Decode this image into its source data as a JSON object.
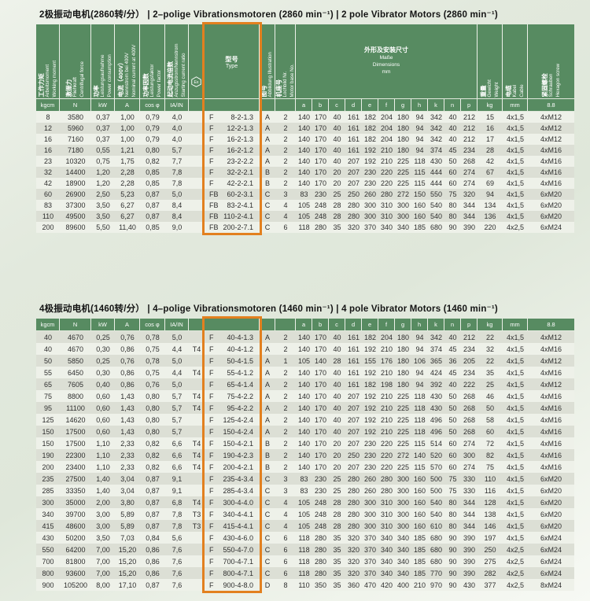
{
  "colors": {
    "header_green": "#578b61",
    "highlight_orange": "#e2801f",
    "row_shade": "#dcdfd5"
  },
  "header": {
    "cols": [
      {
        "cn": "工作力矩",
        "lat": "Arbeitsmoment\nWorking moment",
        "unit": "kgcm"
      },
      {
        "cn": "激振力",
        "lat": "Fliehkraft\nCentrifugal force",
        "unit": "N"
      },
      {
        "cn": "功率",
        "lat": "Leistungsaufnahme\nPower consumption",
        "unit": "kW"
      },
      {
        "cn": "电流（400V）",
        "lat": "Nennstrom bei 400V\nNominal current at 400V",
        "unit": "A"
      },
      {
        "cn": "功率因数",
        "lat": "Leistungsfaktor\nPower factor",
        "unit": "cos φ"
      },
      {
        "cn": "起动电流倍数",
        "lat": "Anzugsstrom/Nennstrom\nStarting current ratio",
        "unit": "IA/IN"
      }
    ],
    "ex_symbol": "Ex",
    "type_col": {
      "cn": "型号",
      "en": "Type"
    },
    "illustration": {
      "cn": "图号",
      "lat": "Abbildung  Illustration"
    },
    "motor_base": {
      "cn": "机座号",
      "lat": "Lochbild Nr.\nMotor base No."
    },
    "dims": {
      "cn": "外形及安装尺寸",
      "lat": "Maße\nDimensions\nmm",
      "letters": [
        "a",
        "b",
        "c",
        "d",
        "e",
        "f",
        "g",
        "h",
        "k",
        "n",
        "p"
      ]
    },
    "weight": {
      "cn": "重量",
      "lat": "Gewicht\nWeight",
      "unit": "kg"
    },
    "cable": {
      "cn": "电缆",
      "lat": "Kabel\nCable",
      "unit": "mm"
    },
    "screw": {
      "cn": "紧固螺栓",
      "lat": "Schrauben\nHexagon screw",
      "unit": "8.8"
    },
    "units_row": [
      "kgcm",
      "N",
      "kW",
      "A",
      "cos φ",
      "IA/IN",
      "",
      "",
      "",
      "",
      "a",
      "b",
      "c",
      "d",
      "e",
      "f",
      "g",
      "h",
      "k",
      "n",
      "p",
      "kg",
      "mm",
      "8.8"
    ]
  },
  "tables": [
    {
      "title": "2极振动电机(2860转/分） | 2–polige Vibrationsmotoren (2860 min⁻¹)  |  2 pole Vibrator Motors (2860 min⁻¹)",
      "rows": [
        [
          "8",
          "3580",
          "0,37",
          "1,00",
          "0,79",
          "4,0",
          "",
          [
            "F",
            "8-2-1.3"
          ],
          "A",
          "2",
          "140",
          "170",
          "40",
          "161",
          "182",
          "204",
          "180",
          "94",
          "342",
          "40",
          "212",
          "15",
          "4x1,5",
          "4xM12"
        ],
        [
          "12",
          "5960",
          "0,37",
          "1,00",
          "0,79",
          "4,0",
          "",
          [
            "F",
            "12-2-1.3"
          ],
          "A",
          "2",
          "140",
          "170",
          "40",
          "161",
          "182",
          "204",
          "180",
          "94",
          "342",
          "40",
          "212",
          "16",
          "4x1,5",
          "4xM12"
        ],
        [
          "16",
          "7160",
          "0,37",
          "1,00",
          "0,79",
          "4,0",
          "",
          [
            "F",
            "16-2-1.3"
          ],
          "A",
          "2",
          "140",
          "170",
          "40",
          "161",
          "182",
          "204",
          "180",
          "94",
          "342",
          "40",
          "212",
          "17",
          "4x1,5",
          "4xM12"
        ],
        [
          "16",
          "7180",
          "0,55",
          "1,21",
          "0,80",
          "5,7",
          "",
          [
            "F",
            "16-2-1.2"
          ],
          "A",
          "2",
          "140",
          "170",
          "40",
          "161",
          "192",
          "210",
          "180",
          "94",
          "374",
          "45",
          "234",
          "28",
          "4x1,5",
          "4xM16"
        ],
        [
          "23",
          "10320",
          "0,75",
          "1,75",
          "0,82",
          "7,7",
          "",
          [
            "F",
            "23-2-2.2"
          ],
          "A",
          "2",
          "140",
          "170",
          "40",
          "207",
          "192",
          "210",
          "225",
          "118",
          "430",
          "50",
          "268",
          "42",
          "4x1,5",
          "4xM16"
        ],
        [
          "32",
          "14400",
          "1,20",
          "2,28",
          "0,85",
          "7,8",
          "",
          [
            "F",
            "32-2-2.1"
          ],
          "B",
          "2",
          "140",
          "170",
          "20",
          "207",
          "230",
          "220",
          "225",
          "115",
          "444",
          "60",
          "274",
          "67",
          "4x1,5",
          "4xM16"
        ],
        [
          "42",
          "18900",
          "1,20",
          "2,28",
          "0,85",
          "7,8",
          "",
          [
            "F",
            "42-2-2.1"
          ],
          "B",
          "2",
          "140",
          "170",
          "20",
          "207",
          "230",
          "220",
          "225",
          "115",
          "444",
          "60",
          "274",
          "69",
          "4x1,5",
          "4xM16"
        ],
        [
          "60",
          "26900",
          "2,50",
          "5,23",
          "0,87",
          "5,0",
          "",
          [
            "FB",
            "60-2-3.1"
          ],
          "C",
          "3",
          "83",
          "230",
          "25",
          "250",
          "260",
          "280",
          "272",
          "150",
          "550",
          "75",
          "320",
          "94",
          "4x1,5",
          "6xM20"
        ],
        [
          "83",
          "37300",
          "3,50",
          "6,27",
          "0,87",
          "8,4",
          "",
          [
            "FB",
            "83-2-4.1"
          ],
          "C",
          "4",
          "105",
          "248",
          "28",
          "280",
          "300",
          "310",
          "300",
          "160",
          "540",
          "80",
          "344",
          "134",
          "4x1,5",
          "6xM20"
        ],
        [
          "110",
          "49500",
          "3,50",
          "6,27",
          "0,87",
          "8,4",
          "",
          [
            "FB",
            "110-2-4.1"
          ],
          "C",
          "4",
          "105",
          "248",
          "28",
          "280",
          "300",
          "310",
          "300",
          "160",
          "540",
          "80",
          "344",
          "136",
          "4x1,5",
          "6xM20"
        ],
        [
          "200",
          "89600",
          "5,50",
          "11,40",
          "0,85",
          "9,0",
          "",
          [
            "FB",
            "200-2-7.1"
          ],
          "C",
          "6",
          "118",
          "280",
          "35",
          "320",
          "370",
          "340",
          "340",
          "185",
          "680",
          "90",
          "390",
          "220",
          "4x2,5",
          "6xM24"
        ]
      ]
    },
    {
      "title": "4极振动电机(1460转/分） | 4–polige Vibrationsmotoren (1460 min⁻¹)  |  4 pole Vibrator Motors (1460 min⁻¹)",
      "rows": [
        [
          "40",
          "4670",
          "0,25",
          "0,76",
          "0,78",
          "5,0",
          "",
          [
            "F",
            "40-4-1.3"
          ],
          "A",
          "2",
          "140",
          "170",
          "40",
          "161",
          "182",
          "204",
          "180",
          "94",
          "342",
          "40",
          "212",
          "22",
          "4x1,5",
          "4xM12"
        ],
        [
          "40",
          "4670",
          "0,30",
          "0,86",
          "0,75",
          "4,4",
          "T4",
          [
            "F",
            "40-4-1.2"
          ],
          "A",
          "2",
          "140",
          "170",
          "40",
          "161",
          "192",
          "210",
          "180",
          "94",
          "374",
          "45",
          "234",
          "32",
          "4x1,5",
          "4xM16"
        ],
        [
          "50",
          "5850",
          "0,25",
          "0,76",
          "0,78",
          "5,0",
          "",
          [
            "F",
            "50-4-1.5"
          ],
          "A",
          "1",
          "105",
          "140",
          "28",
          "161",
          "155",
          "176",
          "180",
          "106",
          "365",
          "36",
          "205",
          "22",
          "4x1,5",
          "4xM12"
        ],
        [
          "55",
          "6450",
          "0,30",
          "0,86",
          "0,75",
          "4,4",
          "T4",
          [
            "F",
            "55-4-1.2"
          ],
          "A",
          "2",
          "140",
          "170",
          "40",
          "161",
          "192",
          "210",
          "180",
          "94",
          "424",
          "45",
          "234",
          "35",
          "4x1,5",
          "4xM16"
        ],
        [
          "65",
          "7605",
          "0,40",
          "0,86",
          "0,76",
          "5,0",
          "",
          [
            "F",
            "65-4-1.4"
          ],
          "A",
          "2",
          "140",
          "170",
          "40",
          "161",
          "182",
          "198",
          "180",
          "94",
          "392",
          "40",
          "222",
          "25",
          "4x1,5",
          "4xM12"
        ],
        [
          "75",
          "8800",
          "0,60",
          "1,43",
          "0,80",
          "5,7",
          "T4",
          [
            "F",
            "75-4-2.2"
          ],
          "A",
          "2",
          "140",
          "170",
          "40",
          "207",
          "192",
          "210",
          "225",
          "118",
          "430",
          "50",
          "268",
          "46",
          "4x1,5",
          "4xM16"
        ],
        [
          "95",
          "11100",
          "0,60",
          "1,43",
          "0,80",
          "5,7",
          "T4",
          [
            "F",
            "95-4-2.2"
          ],
          "A",
          "2",
          "140",
          "170",
          "40",
          "207",
          "192",
          "210",
          "225",
          "118",
          "430",
          "50",
          "268",
          "50",
          "4x1,5",
          "4xM16"
        ],
        [
          "125",
          "14620",
          "0,60",
          "1,43",
          "0,80",
          "5,7",
          "",
          [
            "F",
            "125-4-2.4"
          ],
          "A",
          "2",
          "140",
          "170",
          "40",
          "207",
          "192",
          "210",
          "225",
          "118",
          "496",
          "50",
          "268",
          "58",
          "4x1,5",
          "4xM16"
        ],
        [
          "150",
          "17500",
          "0,60",
          "1,43",
          "0,80",
          "5,7",
          "",
          [
            "F",
            "150-4-2.4"
          ],
          "A",
          "2",
          "140",
          "170",
          "40",
          "207",
          "192",
          "210",
          "225",
          "118",
          "496",
          "50",
          "268",
          "60",
          "4x1,5",
          "4xM16"
        ],
        [
          "150",
          "17500",
          "1,10",
          "2,33",
          "0,82",
          "6,6",
          "T4",
          [
            "F",
            "150-4-2.1"
          ],
          "B",
          "2",
          "140",
          "170",
          "20",
          "207",
          "230",
          "220",
          "225",
          "115",
          "514",
          "60",
          "274",
          "72",
          "4x1,5",
          "4xM16"
        ],
        [
          "190",
          "22300",
          "1,10",
          "2,33",
          "0,82",
          "6,6",
          "T4",
          [
            "F",
            "190-4-2.3"
          ],
          "B",
          "2",
          "140",
          "170",
          "20",
          "250",
          "230",
          "220",
          "272",
          "140",
          "520",
          "60",
          "300",
          "82",
          "4x1,5",
          "4xM16"
        ],
        [
          "200",
          "23400",
          "1,10",
          "2,33",
          "0,82",
          "6,6",
          "T4",
          [
            "F",
            "200-4-2.1"
          ],
          "B",
          "2",
          "140",
          "170",
          "20",
          "207",
          "230",
          "220",
          "225",
          "115",
          "570",
          "60",
          "274",
          "75",
          "4x1,5",
          "4xM16"
        ],
        [
          "235",
          "27500",
          "1,40",
          "3,04",
          "0,87",
          "9,1",
          "",
          [
            "F",
            "235-4-3.4"
          ],
          "C",
          "3",
          "83",
          "230",
          "25",
          "280",
          "260",
          "280",
          "300",
          "160",
          "500",
          "75",
          "330",
          "110",
          "4x1,5",
          "6xM20"
        ],
        [
          "285",
          "33350",
          "1,40",
          "3,04",
          "0,87",
          "9,1",
          "",
          [
            "F",
            "285-4-3.4"
          ],
          "C",
          "3",
          "83",
          "230",
          "25",
          "280",
          "260",
          "280",
          "300",
          "160",
          "500",
          "75",
          "330",
          "116",
          "4x1,5",
          "6xM20"
        ],
        [
          "300",
          "35000",
          "2,00",
          "3,80",
          "0,87",
          "6,8",
          "T4",
          [
            "F",
            "300-4-4.0"
          ],
          "C",
          "4",
          "105",
          "248",
          "28",
          "280",
          "300",
          "310",
          "300",
          "160",
          "540",
          "80",
          "344",
          "128",
          "4x1,5",
          "6xM20"
        ],
        [
          "340",
          "39700",
          "3,00",
          "5,89",
          "0,87",
          "7,8",
          "T3",
          [
            "F",
            "340-4-4.1"
          ],
          "C",
          "4",
          "105",
          "248",
          "28",
          "280",
          "300",
          "310",
          "300",
          "160",
          "540",
          "80",
          "344",
          "138",
          "4x1,5",
          "6xM20"
        ],
        [
          "415",
          "48600",
          "3,00",
          "5,89",
          "0,87",
          "7,8",
          "T3",
          [
            "F",
            "415-4-4.1"
          ],
          "C",
          "4",
          "105",
          "248",
          "28",
          "280",
          "300",
          "310",
          "300",
          "160",
          "610",
          "80",
          "344",
          "146",
          "4x1,5",
          "6xM20"
        ],
        [
          "430",
          "50200",
          "3,50",
          "7,03",
          "0,84",
          "5,6",
          "",
          [
            "F",
            "430-4-6.0"
          ],
          "C",
          "6",
          "118",
          "280",
          "35",
          "320",
          "370",
          "340",
          "340",
          "185",
          "680",
          "90",
          "390",
          "197",
          "4x1,5",
          "6xM24"
        ],
        [
          "550",
          "64200",
          "7,00",
          "15,20",
          "0,86",
          "7,6",
          "",
          [
            "F",
            "550-4-7.0"
          ],
          "C",
          "6",
          "118",
          "280",
          "35",
          "320",
          "370",
          "340",
          "340",
          "185",
          "680",
          "90",
          "390",
          "250",
          "4x2,5",
          "6xM24"
        ],
        [
          "700",
          "81800",
          "7,00",
          "15,20",
          "0,86",
          "7,6",
          "",
          [
            "F",
            "700-4-7.1"
          ],
          "C",
          "6",
          "118",
          "280",
          "35",
          "320",
          "370",
          "340",
          "340",
          "185",
          "680",
          "90",
          "390",
          "275",
          "4x2,5",
          "6xM24"
        ],
        [
          "800",
          "93600",
          "7,00",
          "15,20",
          "0,86",
          "7,6",
          "",
          [
            "F",
            "800-4-7.1"
          ],
          "C",
          "6",
          "118",
          "280",
          "35",
          "320",
          "370",
          "340",
          "340",
          "185",
          "770",
          "90",
          "390",
          "282",
          "4x2,5",
          "6xM24"
        ],
        [
          "900",
          "105200",
          "8,00",
          "17,10",
          "0,87",
          "7,6",
          "",
          [
            "F",
            "900-4-8.0"
          ],
          "D",
          "8",
          "110",
          "350",
          "35",
          "360",
          "470",
          "420",
          "400",
          "210",
          "970",
          "90",
          "430",
          "377",
          "4x2,5",
          "8xM24"
        ]
      ]
    }
  ]
}
